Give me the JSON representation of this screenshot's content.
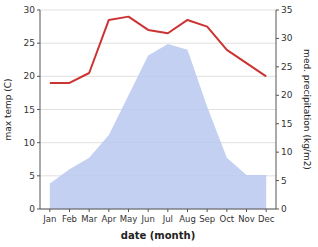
{
  "chart_data": {
    "type": "line",
    "xlabel": "date (month)",
    "ylabel": "max temp (C)",
    "y2label": "med. precipitation (kg/m2)",
    "categories": [
      "Jan",
      "Feb",
      "Mar",
      "Apr",
      "May",
      "Jun",
      "Jul",
      "Aug",
      "Sep",
      "Oct",
      "Nov",
      "Dec"
    ],
    "series": [
      {
        "type": "area",
        "axis": "y2",
        "color": "#b8c8f0",
        "values": [
          4.5,
          7.0,
          9.0,
          13.0,
          20.0,
          27.0,
          29.0,
          28.0,
          18.0,
          9.0,
          6.0,
          6.0
        ]
      },
      {
        "type": "line",
        "color": "#cc3333",
        "values": [
          19.0,
          19.0,
          20.5,
          28.5,
          29.0,
          27.0,
          26.5,
          28.5,
          27.5,
          24.0,
          22.0,
          20.0
        ]
      }
    ],
    "ylim": [
      0,
      30
    ],
    "yticks": [
      0,
      5,
      10,
      15,
      20,
      25,
      30
    ],
    "y2lim": [
      0,
      35
    ],
    "y2ticks": [
      0,
      5,
      10,
      15,
      20,
      25,
      30,
      35
    ],
    "grid": true
  }
}
